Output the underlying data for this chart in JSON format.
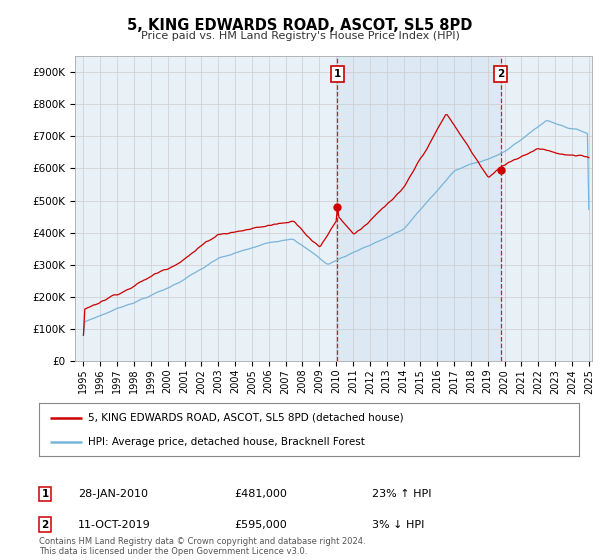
{
  "title": "5, KING EDWARDS ROAD, ASCOT, SL5 8PD",
  "subtitle": "Price paid vs. HM Land Registry's House Price Index (HPI)",
  "ylabel_ticks": [
    "£0",
    "£100K",
    "£200K",
    "£300K",
    "£400K",
    "£500K",
    "£600K",
    "£700K",
    "£800K",
    "£900K"
  ],
  "ytick_vals": [
    0,
    100000,
    200000,
    300000,
    400000,
    500000,
    600000,
    700000,
    800000,
    900000
  ],
  "ylim": [
    0,
    950000
  ],
  "xlim_start": 1994.5,
  "xlim_end": 2025.2,
  "hpi_color": "#7ab4d8",
  "price_color": "#cc0000",
  "shade_color": "#ddeeff",
  "marker1_date": 2010.08,
  "marker1_price": 481000,
  "marker1_label": "1",
  "marker2_date": 2019.78,
  "marker2_price": 595000,
  "marker2_label": "2",
  "legend_line1": "5, KING EDWARDS ROAD, ASCOT, SL5 8PD (detached house)",
  "legend_line2": "HPI: Average price, detached house, Bracknell Forest",
  "footnote": "Contains HM Land Registry data © Crown copyright and database right 2024.\nThis data is licensed under the Open Government Licence v3.0.",
  "bg_color": "#ffffff",
  "grid_color": "#cccccc",
  "plot_bg": "#e8f0f8"
}
